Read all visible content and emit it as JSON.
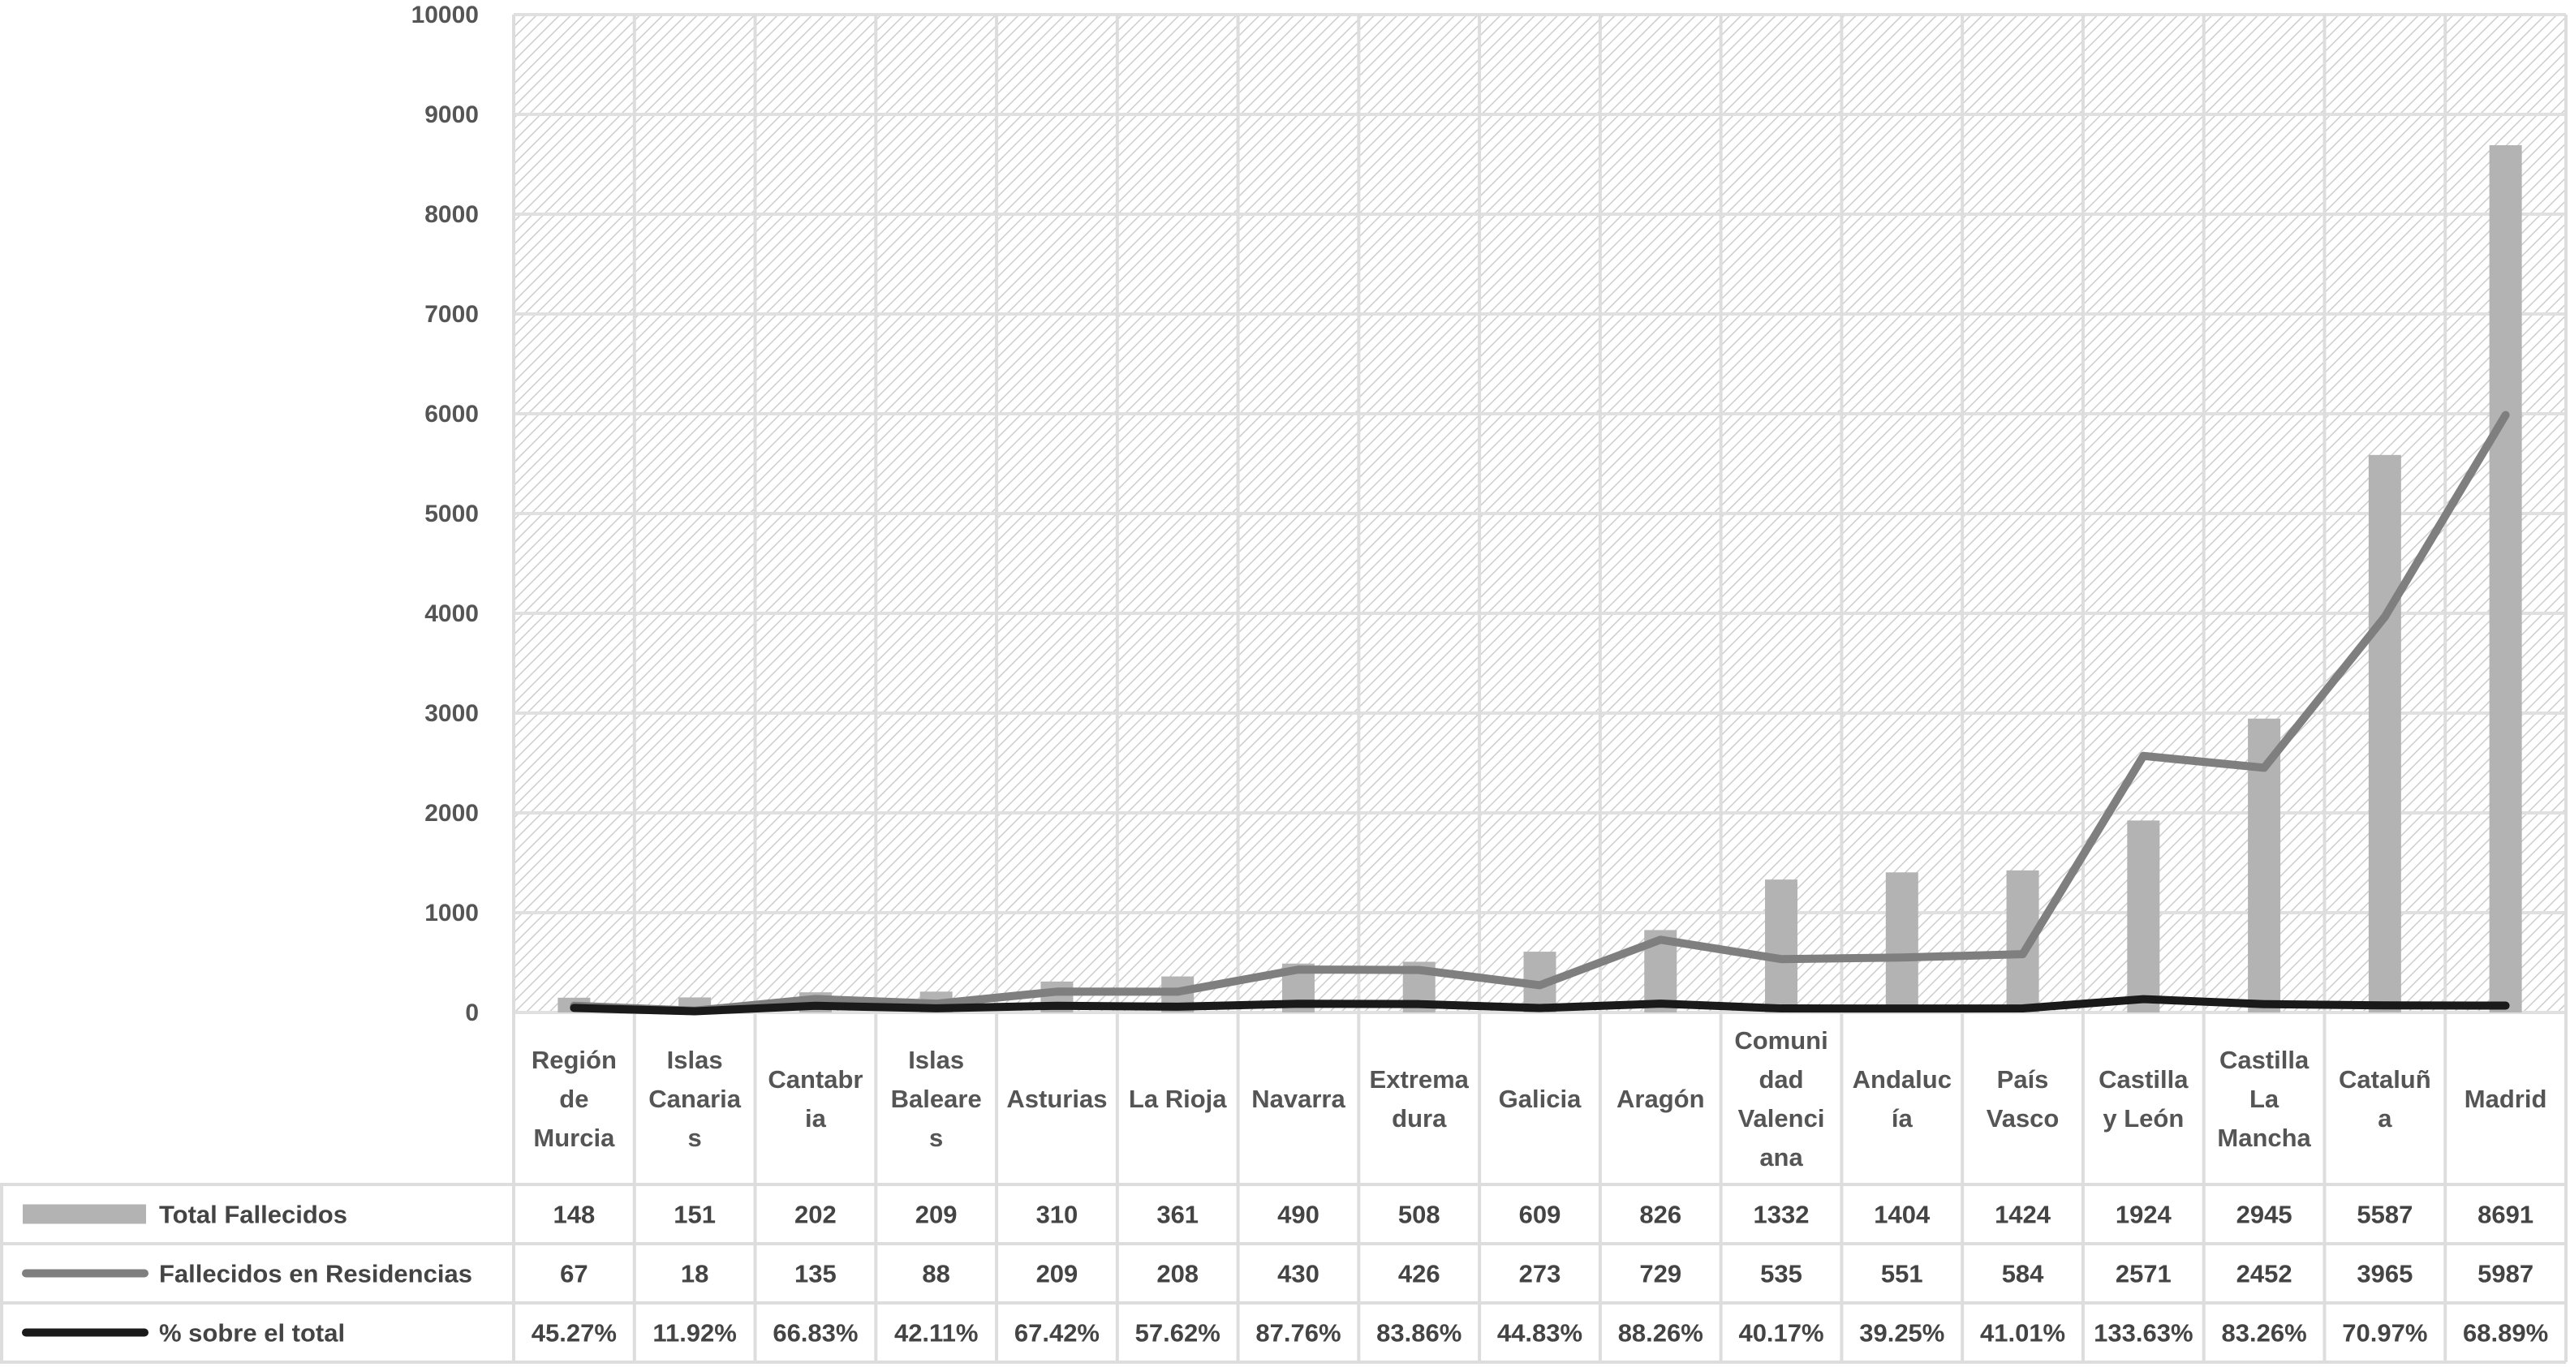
{
  "chart_data": {
    "type": "bar",
    "categories": [
      [
        "Región",
        "de",
        "Murcia"
      ],
      [
        "Islas",
        "Canaria",
        "s"
      ],
      [
        "Cantabr",
        "ia"
      ],
      [
        "Islas",
        "Baleare",
        "s"
      ],
      [
        "Asturias"
      ],
      [
        "La Rioja"
      ],
      [
        "Navarra"
      ],
      [
        "Extrema",
        "dura"
      ],
      [
        "Galicia"
      ],
      [
        "Aragón"
      ],
      [
        "Comuni",
        "dad",
        "Valenci",
        "ana"
      ],
      [
        "Andaluc",
        "ía"
      ],
      [
        "País",
        "Vasco"
      ],
      [
        "Castilla",
        "y León"
      ],
      [
        "Castilla",
        "La",
        "Mancha"
      ],
      [
        "Cataluñ",
        "a"
      ],
      [
        "Madrid"
      ]
    ],
    "ylim": [
      0,
      10000
    ],
    "yticks": [
      "0",
      "1000",
      "2000",
      "3000",
      "4000",
      "5000",
      "6000",
      "7000",
      "8000",
      "9000",
      "10000"
    ],
    "grid": true,
    "legend": "data-table",
    "series": [
      {
        "name": "Total Fallecidos",
        "kind": "bar",
        "color": "#b3b3b3",
        "values": [
          148,
          151,
          202,
          209,
          310,
          361,
          490,
          508,
          609,
          826,
          1332,
          1404,
          1424,
          1924,
          2945,
          5587,
          8691
        ],
        "labels": [
          "148",
          "151",
          "202",
          "209",
          "310",
          "361",
          "490",
          "508",
          "609",
          "826",
          "1332",
          "1404",
          "1424",
          "1924",
          "2945",
          "5587",
          "8691"
        ]
      },
      {
        "name": "Fallecidos en Residencias",
        "kind": "line",
        "color": "#7f7f7f",
        "values": [
          67,
          18,
          135,
          88,
          209,
          208,
          430,
          426,
          273,
          729,
          535,
          551,
          584,
          2571,
          2452,
          3965,
          5987
        ],
        "labels": [
          "67",
          "18",
          "135",
          "88",
          "209",
          "208",
          "430",
          "426",
          "273",
          "729",
          "535",
          "551",
          "584",
          "2571",
          "2452",
          "3965",
          "5987"
        ]
      },
      {
        "name": "% sobre el total",
        "kind": "line",
        "color": "#1a1a1a",
        "values": [
          45.27,
          11.92,
          66.83,
          42.11,
          67.42,
          57.62,
          87.76,
          83.86,
          44.83,
          88.26,
          40.17,
          39.25,
          41.01,
          133.63,
          83.26,
          70.97,
          68.89
        ],
        "labels": [
          "45.27%",
          "11.92%",
          "66.83%",
          "42.11%",
          "67.42%",
          "57.62%",
          "87.76%",
          "83.86%",
          "44.83%",
          "88.26%",
          "40.17%",
          "39.25%",
          "41.01%",
          "133.63%",
          "83.26%",
          "70.97%",
          "68.89%"
        ]
      }
    ]
  }
}
